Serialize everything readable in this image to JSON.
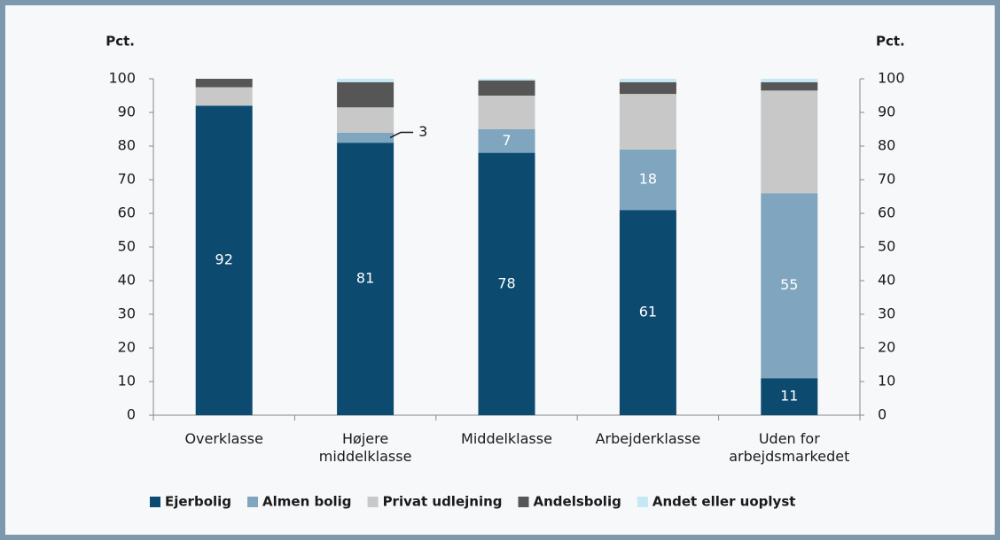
{
  "chart_data": {
    "type": "stacked_bar",
    "y_label": "Pct.",
    "y2_label": "Pct.",
    "categories": [
      "Overklasse",
      "Højere\nmiddelklasse",
      "Middelklasse",
      "Arbejderklasse",
      "Uden for\narbejdsmarkedet"
    ],
    "series": [
      {
        "name": "Ejerbolig",
        "color": "#0d4a70",
        "values": [
          92,
          81,
          78,
          61,
          11
        ],
        "labeled": true
      },
      {
        "name": "Almen bolig",
        "color": "#80a6bf",
        "values": [
          0,
          3,
          7,
          18,
          55
        ],
        "labeled": true
      },
      {
        "name": "Privat udlejning",
        "color": "#c8c8c8",
        "values": [
          5.5,
          7.5,
          10,
          16.5,
          30.5
        ]
      },
      {
        "name": "Andelsbolig",
        "color": "#565656",
        "values": [
          2.5,
          7.5,
          4.5,
          3.5,
          2.5
        ]
      },
      {
        "name": "Andet eller uoplyst",
        "color": "#c5e8f5",
        "values": [
          0,
          1,
          0.5,
          1,
          1
        ]
      }
    ],
    "ylim": [
      0,
      100
    ],
    "yticks": [
      0,
      10,
      20,
      30,
      40,
      50,
      60,
      70,
      80,
      90,
      100
    ],
    "y2lim": [
      0,
      100
    ],
    "y2ticks": [
      0,
      10,
      20,
      30,
      40,
      50,
      60,
      70,
      80,
      90,
      100
    ]
  }
}
